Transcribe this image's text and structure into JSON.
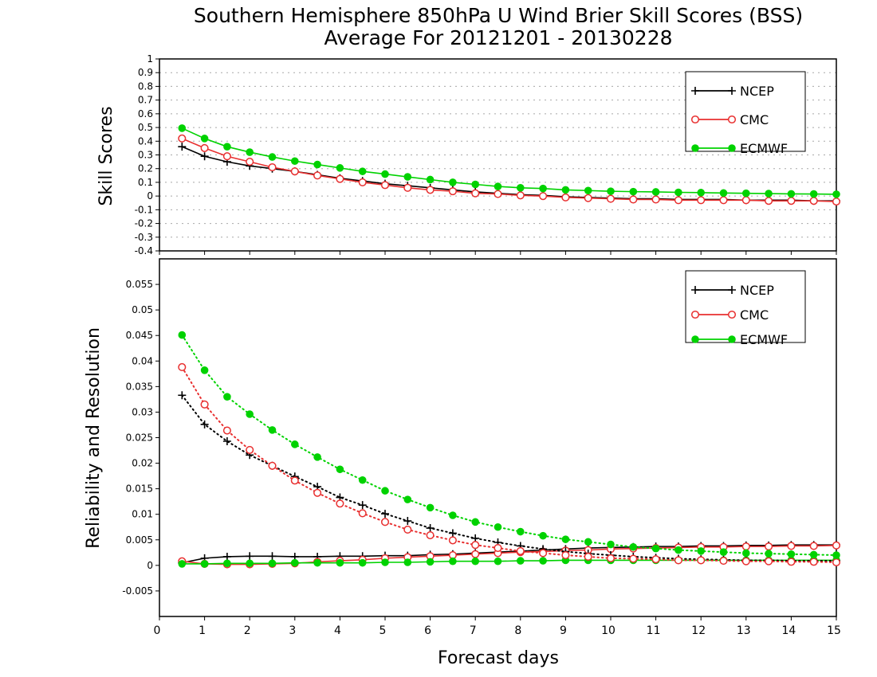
{
  "chart_data": {
    "title_line1": "Southern Hemisphere 850hPa U Wind Brier Skill Scores (BSS)",
    "title_line2": "Average For 20121201 - 20130228",
    "xlabel": "Forecast days",
    "x_ticks": [
      "0",
      "1",
      "2",
      "3",
      "4",
      "5",
      "6",
      "7",
      "8",
      "9",
      "10",
      "11",
      "12",
      "13",
      "14",
      "15"
    ],
    "xlim": [
      0,
      15
    ],
    "x": [
      0.5,
      1,
      1.5,
      2,
      2.5,
      3,
      3.5,
      4,
      4.5,
      5,
      5.5,
      6,
      6.5,
      7,
      7.5,
      8,
      8.5,
      9,
      9.5,
      10,
      10.5,
      11,
      11.5,
      12,
      12.5,
      13,
      13.5,
      14,
      14.5,
      15
    ],
    "colors": {
      "NCEP": "#000000",
      "CMC": "#e83030",
      "ECMWF": "#00d200"
    },
    "panels": [
      {
        "type": "line",
        "ylabel": "Skill Scores",
        "ylim": [
          -0.4,
          1
        ],
        "y_ticks": [
          "1",
          "0.9",
          "0.8",
          "0.7",
          "0.6",
          "0.5",
          "0.4",
          "0.3",
          "0.2",
          "0.1",
          "0",
          "-0.1",
          "-0.2",
          "-0.3",
          "-0.4"
        ],
        "y_tick_values": [
          1,
          0.9,
          0.8,
          0.7,
          0.6,
          0.5,
          0.4,
          0.3,
          0.2,
          0.1,
          0,
          -0.1,
          -0.2,
          -0.3,
          -0.4
        ],
        "grid": true,
        "legend": [
          "NCEP",
          "CMC",
          "ECMWF"
        ],
        "legend_position": "top-right",
        "series": [
          {
            "name": "NCEP",
            "marker": "plus",
            "line": "solid",
            "values": [
              0.36,
              0.29,
              0.25,
              0.22,
              0.2,
              0.18,
              0.155,
              0.13,
              0.11,
              0.09,
              0.075,
              0.06,
              0.045,
              0.03,
              0.02,
              0.01,
              0.005,
              -0.005,
              -0.01,
              -0.015,
              -0.02,
              -0.02,
              -0.025,
              -0.025,
              -0.025,
              -0.03,
              -0.03,
              -0.03,
              -0.035,
              -0.035
            ]
          },
          {
            "name": "CMC",
            "marker": "circle",
            "line": "solid",
            "values": [
              0.42,
              0.35,
              0.29,
              0.25,
              0.21,
              0.18,
              0.15,
              0.125,
              0.1,
              0.08,
              0.06,
              0.045,
              0.035,
              0.02,
              0.015,
              0.005,
              0,
              -0.01,
              -0.015,
              -0.02,
              -0.025,
              -0.025,
              -0.03,
              -0.03,
              -0.03,
              -0.03,
              -0.035,
              -0.035,
              -0.035,
              -0.04
            ]
          },
          {
            "name": "ECMWF",
            "marker": "dot",
            "line": "solid",
            "values": [
              0.495,
              0.42,
              0.36,
              0.32,
              0.285,
              0.255,
              0.23,
              0.205,
              0.18,
              0.16,
              0.14,
              0.12,
              0.1,
              0.085,
              0.07,
              0.06,
              0.055,
              0.045,
              0.04,
              0.035,
              0.032,
              0.03,
              0.027,
              0.025,
              0.022,
              0.02,
              0.018,
              0.016,
              0.015,
              0.013
            ]
          }
        ]
      },
      {
        "type": "line",
        "ylabel": "Reliability and Resolution",
        "ylim": [
          -0.01,
          0.06
        ],
        "y_ticks": [
          "0.055",
          "0.05",
          "0.045",
          "0.04",
          "0.035",
          "0.03",
          "0.025",
          "0.02",
          "0.015",
          "0.01",
          "0.005",
          "0",
          "-0.005"
        ],
        "y_tick_values": [
          0.055,
          0.05,
          0.045,
          0.04,
          0.035,
          0.03,
          0.025,
          0.02,
          0.015,
          0.01,
          0.005,
          0,
          -0.005
        ],
        "grid": false,
        "legend": [
          "NCEP",
          "CMC",
          "ECMWF"
        ],
        "legend_position": "top-right",
        "series": [
          {
            "name": "NCEP",
            "role": "reliability",
            "marker": "plus",
            "line": "solid",
            "values": [
              0.0005,
              0.0014,
              0.0017,
              0.0018,
              0.0018,
              0.0017,
              0.0017,
              0.0018,
              0.0018,
              0.0019,
              0.0019,
              0.0021,
              0.0022,
              0.0024,
              0.0026,
              0.0028,
              0.003,
              0.0032,
              0.0034,
              0.0035,
              0.0036,
              0.0037,
              0.0037,
              0.0038,
              0.0038,
              0.0039,
              0.0039,
              0.004,
              0.004,
              0.004
            ]
          },
          {
            "name": "CMC",
            "role": "reliability",
            "marker": "circle",
            "line": "solid",
            "values": [
              0.0008,
              0.0003,
              0.0002,
              0.0002,
              0.0003,
              0.0004,
              0.0007,
              0.0009,
              0.0011,
              0.0014,
              0.0016,
              0.0018,
              0.002,
              0.0022,
              0.0024,
              0.0026,
              0.0027,
              0.0029,
              0.003,
              0.0032,
              0.0033,
              0.0034,
              0.0035,
              0.0036,
              0.0036,
              0.0037,
              0.0037,
              0.0038,
              0.0038,
              0.0039
            ]
          },
          {
            "name": "ECMWF",
            "role": "reliability",
            "marker": "dot",
            "line": "solid",
            "values": [
              0.0003,
              0.0003,
              0.0004,
              0.0004,
              0.0004,
              0.0005,
              0.0005,
              0.0005,
              0.0005,
              0.0006,
              0.0006,
              0.0007,
              0.0008,
              0.0008,
              0.0008,
              0.0009,
              0.0009,
              0.001,
              0.001,
              0.001,
              0.001,
              0.001,
              0.001,
              0.001,
              0.001,
              0.001,
              0.001,
              0.001,
              0.001,
              0.001
            ]
          },
          {
            "name": "NCEP",
            "role": "resolution",
            "marker": "plus",
            "line": "dotted",
            "values": [
              0.0333,
              0.0276,
              0.0243,
              0.0216,
              0.0195,
              0.0174,
              0.0154,
              0.0133,
              0.0118,
              0.0101,
              0.0087,
              0.0073,
              0.0063,
              0.0053,
              0.0045,
              0.0038,
              0.0032,
              0.0027,
              0.0023,
              0.002,
              0.0017,
              0.0015,
              0.0013,
              0.0012,
              0.0011,
              0.001,
              0.001,
              0.0009,
              0.0009,
              0.0009
            ]
          },
          {
            "name": "CMC",
            "role": "resolution",
            "marker": "circle",
            "line": "dotted",
            "values": [
              0.0388,
              0.0315,
              0.0264,
              0.0226,
              0.0195,
              0.0166,
              0.0142,
              0.0121,
              0.0102,
              0.0085,
              0.007,
              0.0059,
              0.0049,
              0.004,
              0.0034,
              0.0028,
              0.0024,
              0.002,
              0.0017,
              0.0014,
              0.0013,
              0.0012,
              0.001,
              0.001,
              0.0009,
              0.0008,
              0.0008,
              0.0007,
              0.0007,
              0.0006
            ]
          },
          {
            "name": "ECMWF",
            "role": "resolution",
            "marker": "dot",
            "line": "dotted",
            "values": [
              0.0451,
              0.0382,
              0.033,
              0.0296,
              0.0265,
              0.0237,
              0.0212,
              0.0188,
              0.0167,
              0.0146,
              0.0129,
              0.0113,
              0.0098,
              0.0085,
              0.0075,
              0.0066,
              0.0058,
              0.0051,
              0.0046,
              0.0041,
              0.0036,
              0.0033,
              0.003,
              0.0028,
              0.0026,
              0.0024,
              0.0023,
              0.0022,
              0.0021,
              0.002
            ]
          }
        ]
      }
    ]
  }
}
